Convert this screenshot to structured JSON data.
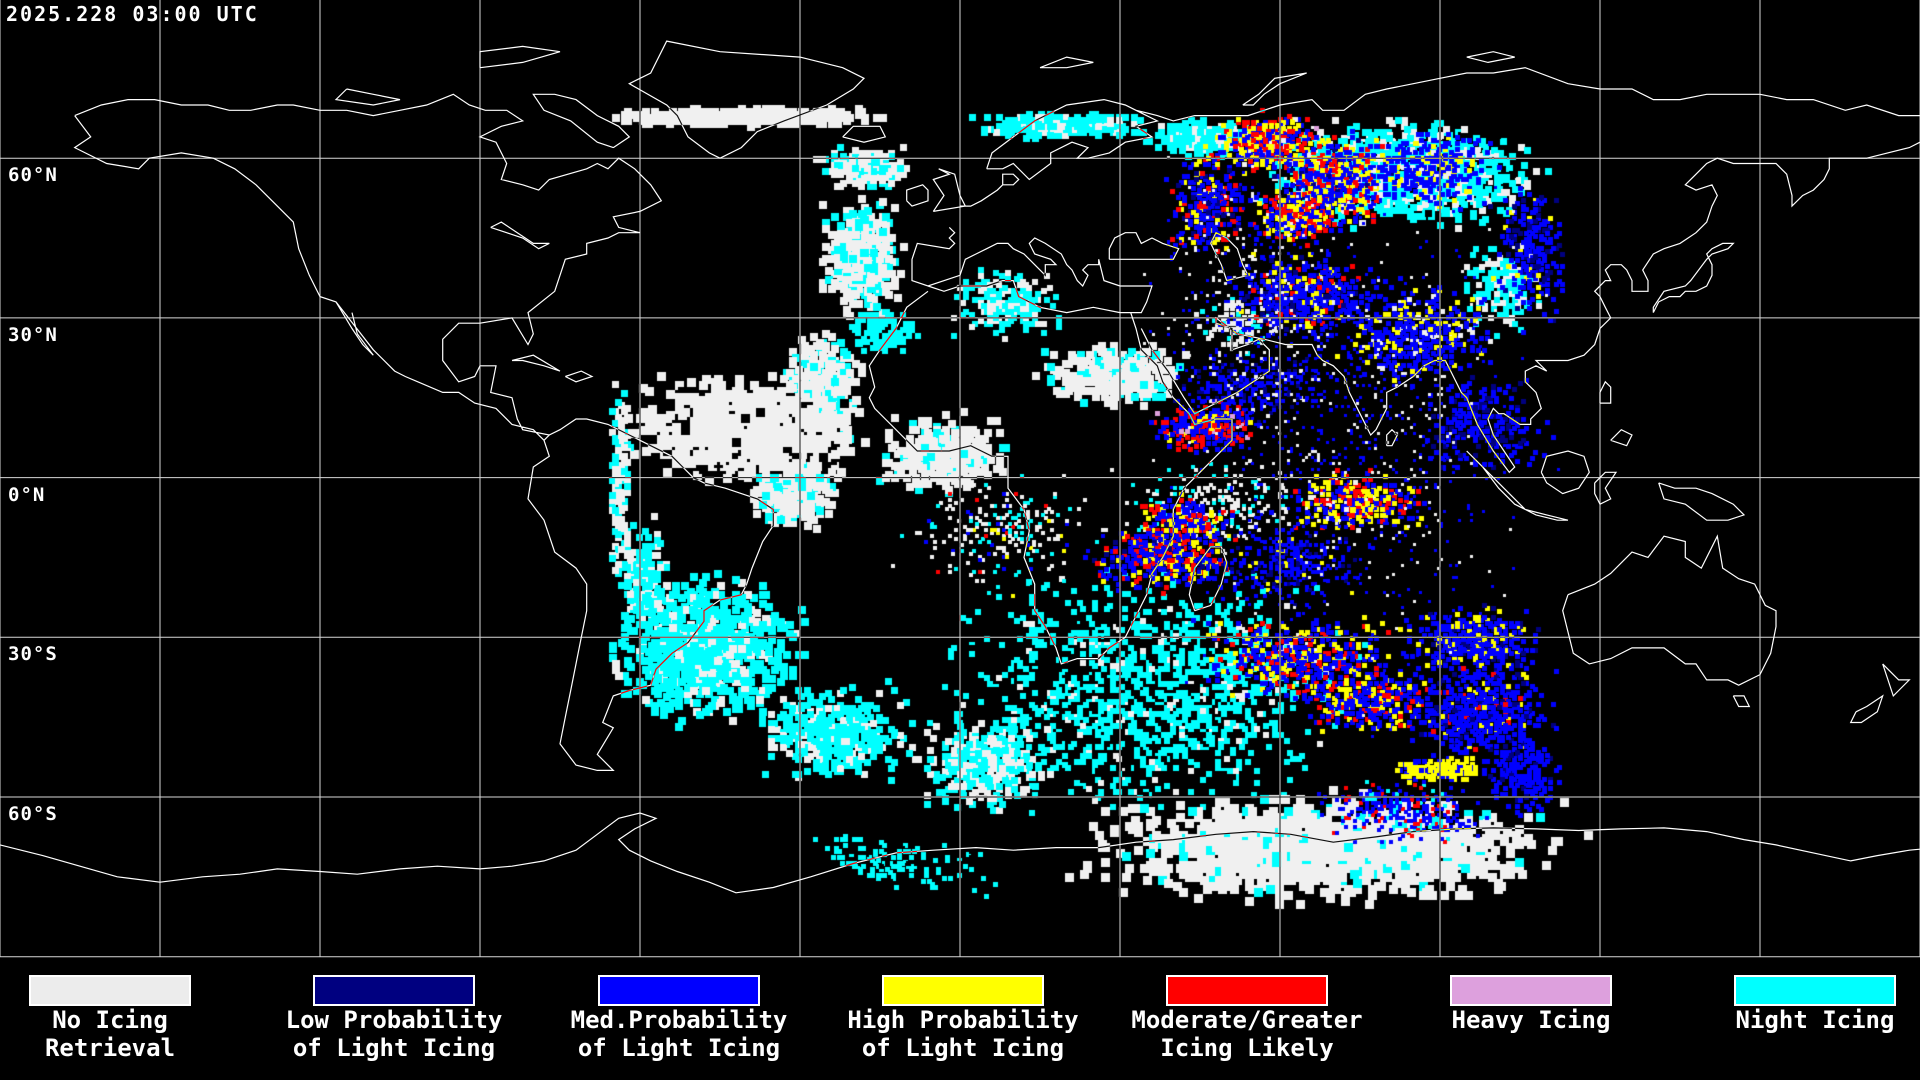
{
  "header": {
    "timestamp": "2025.228 03:00 UTC"
  },
  "map": {
    "latitude_labels": [
      {
        "label": "60°N",
        "lat": 60
      },
      {
        "label": "30°N",
        "lat": 30
      },
      {
        "label": "0°N",
        "lat": 0
      },
      {
        "label": "30°S",
        "lat": -30
      },
      {
        "label": "60°S",
        "lat": -60
      }
    ]
  },
  "palette": {
    "background": "#000000",
    "line": "#ffffff",
    "white": "#f0f0f0",
    "cyan": "#00ffff",
    "blue": "#0000ff",
    "navy": "#000080",
    "yellow": "#ffff00",
    "red": "#ff0000",
    "plum": "#dda0dd"
  },
  "legend": {
    "items": [
      {
        "name": "no-icing-retrieval",
        "color": "#ececec",
        "lines": [
          "No Icing",
          "Retrieval"
        ]
      },
      {
        "name": "low-prob-light-icing",
        "color": "#000080",
        "lines": [
          "Low Probability",
          "of Light Icing"
        ]
      },
      {
        "name": "med-prob-light-icing",
        "color": "#0000ff",
        "lines": [
          "Med.Probability",
          "of Light Icing"
        ]
      },
      {
        "name": "high-prob-light-icing",
        "color": "#ffff00",
        "lines": [
          "High Probability",
          "of Light Icing"
        ]
      },
      {
        "name": "moderate-greater-icing",
        "color": "#ff0000",
        "lines": [
          "Moderate/Greater",
          "Icing Likely"
        ]
      },
      {
        "name": "heavy-icing",
        "color": "#dda0dd",
        "lines": [
          "Heavy Icing"
        ]
      },
      {
        "name": "night-icing",
        "color": "#00ffff",
        "lines": [
          "Night Icing"
        ]
      }
    ]
  }
}
